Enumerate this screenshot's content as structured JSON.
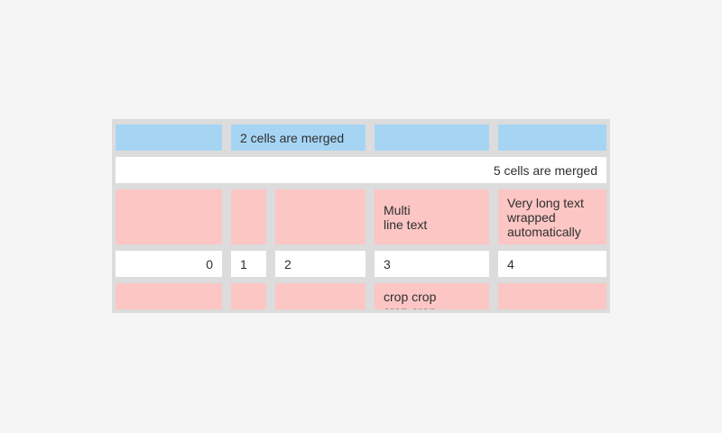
{
  "widget": {
    "type": "table",
    "colors": {
      "page": "#f5f5f5",
      "surface": "#dcdcdc",
      "cell": "#ffffff",
      "blue": "#a6d5f4",
      "pink": "#fbc6c4",
      "text": "#2f2f2f"
    },
    "rows": [
      {
        "kind": "header-blue",
        "cells": [
          {
            "text": ""
          },
          {
            "text": "2 cells are merged",
            "span": 2,
            "align": "left"
          },
          {
            "text": ""
          },
          {
            "text": ""
          }
        ]
      },
      {
        "kind": "merged-white",
        "cells": [
          {
            "text": "5 cells are merged",
            "span": 5,
            "align": "right"
          }
        ]
      },
      {
        "kind": "pink",
        "cells": [
          {
            "text": ""
          },
          {
            "text": ""
          },
          {
            "text": ""
          },
          {
            "text": "Multi\nline text",
            "align": "left"
          },
          {
            "text": "Very long text\nwrapped\nautomatically",
            "align": "left"
          }
        ]
      },
      {
        "kind": "numbers-white",
        "cells": [
          {
            "text": "0",
            "align": "right"
          },
          {
            "text": "1",
            "align": "left"
          },
          {
            "text": "2",
            "align": "left"
          },
          {
            "text": "3",
            "align": "left"
          },
          {
            "text": "4",
            "align": "left"
          }
        ]
      },
      {
        "kind": "pink-cropped",
        "cells": [
          {
            "text": ""
          },
          {
            "text": ""
          },
          {
            "text": ""
          },
          {
            "text": "crop crop\ncrop crop",
            "align": "left",
            "note": "clipped-by-widget-bottom"
          },
          {
            "text": ""
          }
        ]
      }
    ]
  }
}
